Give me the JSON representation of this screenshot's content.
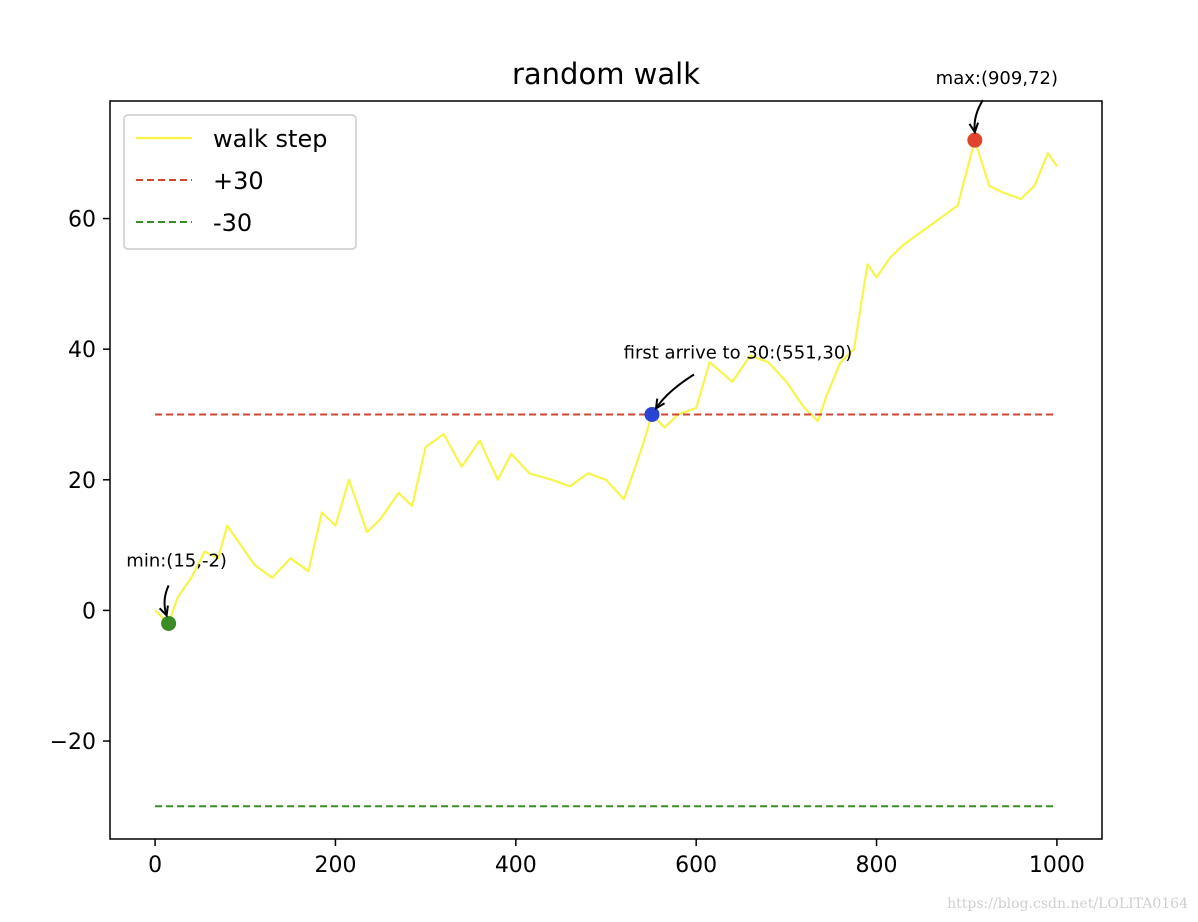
{
  "chart_data": {
    "type": "line",
    "title": "random walk",
    "xlabel": "",
    "ylabel": "",
    "xlim": [
      -50,
      1050
    ],
    "ylim": [
      -35,
      78
    ],
    "x_ticks": [
      0,
      200,
      400,
      600,
      800,
      1000
    ],
    "x_tick_labels": [
      "0",
      "200",
      "400",
      "600",
      "800",
      "1000"
    ],
    "y_ticks": [
      -20,
      0,
      20,
      40,
      60
    ],
    "y_tick_labels": [
      "−20",
      "0",
      "20",
      "40",
      "60"
    ],
    "grid": false,
    "legend_position": "top-left",
    "series": [
      {
        "name": "walk step",
        "style": "solid",
        "color": "#f7f54a",
        "x": [
          0,
          15,
          25,
          40,
          55,
          70,
          80,
          95,
          110,
          130,
          150,
          170,
          185,
          200,
          215,
          235,
          250,
          270,
          285,
          300,
          320,
          340,
          360,
          380,
          395,
          415,
          440,
          460,
          480,
          500,
          520,
          540,
          551,
          565,
          580,
          600,
          615,
          640,
          660,
          680,
          700,
          720,
          735,
          745,
          760,
          775,
          790,
          800,
          815,
          830,
          850,
          870,
          890,
          909,
          925,
          940,
          960,
          975,
          990,
          1000
        ],
        "y": [
          0,
          -2,
          2,
          5,
          9,
          8,
          13,
          10,
          7,
          5,
          8,
          6,
          15,
          13,
          20,
          12,
          14,
          18,
          16,
          25,
          27,
          22,
          26,
          20,
          24,
          21,
          20,
          19,
          21,
          20,
          17,
          25,
          30,
          28,
          30,
          31,
          38,
          35,
          39,
          38,
          35,
          31,
          29,
          33,
          38,
          40,
          53,
          51,
          54,
          56,
          58,
          60,
          62,
          72,
          65,
          64,
          63,
          65,
          70,
          68
        ]
      },
      {
        "name": "+30",
        "style": "dashed",
        "color": "#d1462f",
        "x": [
          0,
          1000
        ],
        "y": [
          30,
          30
        ]
      },
      {
        "name": "-30",
        "style": "dashed",
        "color": "#3a8c25",
        "x": [
          0,
          1000
        ],
        "y": [
          -30,
          -30
        ]
      }
    ],
    "points": [
      {
        "name": "min",
        "x": 15,
        "y": -2,
        "color": "#3a8c25"
      },
      {
        "name": "first",
        "x": 551,
        "y": 30,
        "color": "#2a44d4"
      },
      {
        "name": "max",
        "x": 909,
        "y": 72,
        "color": "#e0442c"
      }
    ],
    "annotations": [
      {
        "text": "min:(15,-2)",
        "x": 15,
        "y": -2
      },
      {
        "text": "first arrive to 30:(551,30)",
        "x": 551,
        "y": 30
      },
      {
        "text": "max:(909,72)",
        "x": 909,
        "y": 72
      }
    ]
  },
  "watermark": "https://blog.csdn.net/LOLITA0164"
}
